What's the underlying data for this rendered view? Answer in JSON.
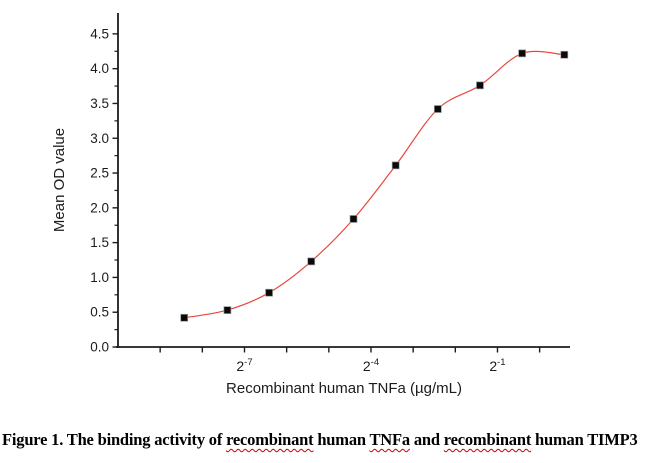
{
  "chart_data": {
    "type": "scatter",
    "subtype": "dose-response-curve-with-4pl-fit",
    "title": "",
    "xlabel": "Recombinant human TNFa (µg/mL)",
    "ylabel": "Mean OD value",
    "x_scale": "log2",
    "x_range_log2": [
      -10,
      0.72
    ],
    "ylim": [
      0,
      4.8
    ],
    "y_major_ticks": [
      0.0,
      0.5,
      1.0,
      1.5,
      2.0,
      2.5,
      3.0,
      3.5,
      4.0,
      4.5
    ],
    "y_minor_tick_step": 0.25,
    "x_all_ticks_log2": [
      -9,
      -8,
      -7,
      -6,
      -5,
      -4,
      -3,
      -2,
      -1,
      0
    ],
    "x_labeled_ticks": [
      {
        "log2": -7,
        "base": "2",
        "exp": "-7"
      },
      {
        "log2": -4,
        "base": "2",
        "exp": "-4"
      },
      {
        "log2": -1,
        "base": "2",
        "exp": "-1"
      }
    ],
    "points": [
      {
        "x_ug_ml": 0.0029,
        "y": 0.42
      },
      {
        "x_ug_ml": 0.0059,
        "y": 0.53
      },
      {
        "x_ug_ml": 0.0117,
        "y": 0.78
      },
      {
        "x_ug_ml": 0.0234,
        "y": 1.23
      },
      {
        "x_ug_ml": 0.0469,
        "y": 1.84
      },
      {
        "x_ug_ml": 0.0938,
        "y": 2.61
      },
      {
        "x_ug_ml": 0.1875,
        "y": 3.42
      },
      {
        "x_ug_ml": 0.375,
        "y": 3.76
      },
      {
        "x_ug_ml": 0.75,
        "y": 4.22
      },
      {
        "x_ug_ml": 1.5,
        "y": 4.2
      }
    ],
    "marker": {
      "shape": "square",
      "fill": "#0a0a0a",
      "edge": "#9a9a9a",
      "size": 7
    },
    "fit_curve": {
      "color": "#e8483f",
      "width": 1.2
    },
    "axis_color": "#1c1c1c",
    "grid": false,
    "legend": "none"
  },
  "caption": {
    "segments": [
      {
        "text": "Figure 1. The binding activity of ",
        "spellcheck_underline": false
      },
      {
        "text": "recombinant",
        "spellcheck_underline": true
      },
      {
        "text": " human ",
        "spellcheck_underline": false
      },
      {
        "text": "TNFa",
        "spellcheck_underline": true
      },
      {
        "text": " and ",
        "spellcheck_underline": false
      },
      {
        "text": "recombinant",
        "spellcheck_underline": true
      },
      {
        "text": " human TIMP3",
        "spellcheck_underline": false
      }
    ]
  }
}
